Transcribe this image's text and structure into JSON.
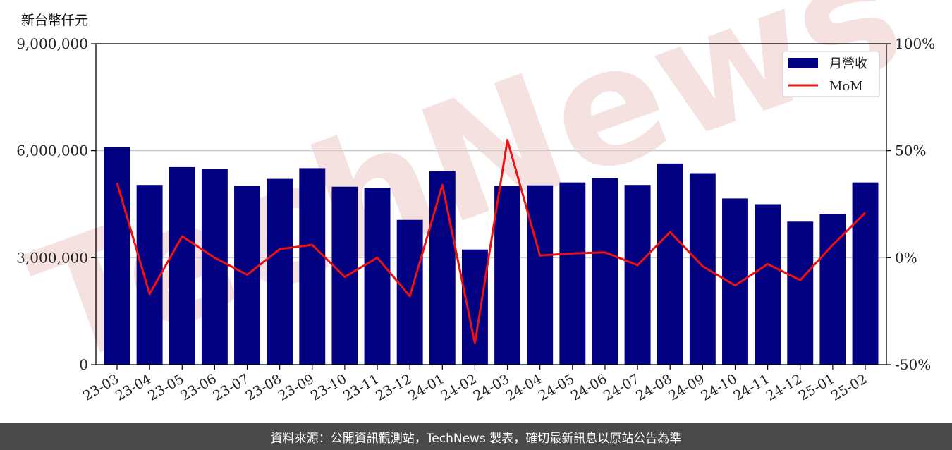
{
  "unit_label": "新台幣仟元",
  "footer_text": "資料來源：公開資訊觀測站，TechNews 製表，確切最新訊息以原站公告為準",
  "watermark_text": "TechNews",
  "colors": {
    "bar": "#000080",
    "line": "#ee1111",
    "grid": "#cccccc",
    "footer_bg": "#4a4a4a"
  },
  "chart_data": {
    "type": "bar",
    "categories": [
      "23-03",
      "23-04",
      "23-05",
      "23-06",
      "23-07",
      "23-08",
      "23-09",
      "23-10",
      "23-11",
      "23-12",
      "24-01",
      "24-02",
      "24-03",
      "24-04",
      "24-05",
      "24-06",
      "24-07",
      "24-08",
      "24-09",
      "24-10",
      "24-11",
      "24-12",
      "25-01",
      "25-02"
    ],
    "series": [
      {
        "name": "月營收",
        "type": "bar",
        "axis": "left",
        "values": [
          6100000,
          5040000,
          5540000,
          5480000,
          5010000,
          5210000,
          5510000,
          4990000,
          4960000,
          4060000,
          5430000,
          3230000,
          5010000,
          5030000,
          5110000,
          5230000,
          5040000,
          5640000,
          5370000,
          4660000,
          4500000,
          4010000,
          4230000,
          5110000
        ]
      },
      {
        "name": "MoM",
        "type": "line",
        "axis": "right",
        "values": [
          35,
          -17,
          10,
          0,
          -8,
          4,
          6,
          -9,
          0,
          -18,
          34,
          -40,
          55,
          1,
          2,
          2.5,
          -3.5,
          12,
          -4,
          -13,
          -3,
          -10.5,
          6,
          21
        ]
      }
    ],
    "y_left": {
      "lim": [
        0,
        9000000
      ],
      "ticks": [
        0,
        3000000,
        6000000,
        9000000
      ],
      "tick_labels": [
        "0",
        "3,000,000",
        "6,000,000",
        "9,000,000"
      ]
    },
    "y_right": {
      "lim": [
        -50,
        100
      ],
      "ticks": [
        -50,
        0,
        50,
        100
      ],
      "tick_labels": [
        "-50%",
        "0%",
        "50%",
        "100%"
      ]
    },
    "grid": "horizontal",
    "legend": "top-right"
  }
}
